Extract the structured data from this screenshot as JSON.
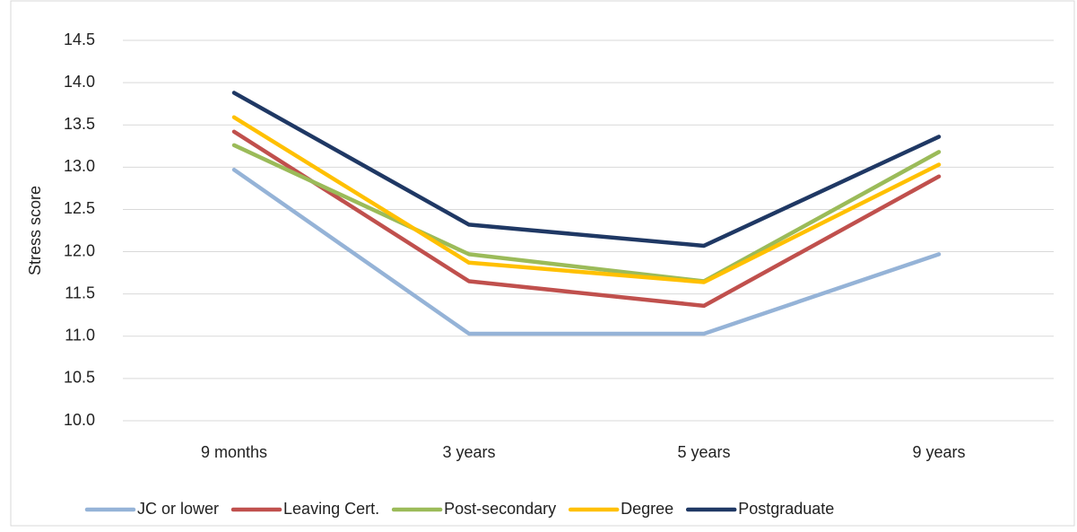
{
  "chart_data": {
    "type": "line",
    "y_label": "Stress score",
    "categories": [
      "9 months",
      "3 years",
      "5 years",
      "9 years"
    ],
    "series": [
      {
        "name": "JC or lower",
        "color": "#95b3d7",
        "values": [
          12.97,
          11.03,
          11.03,
          11.97
        ]
      },
      {
        "name": "Leaving Cert.",
        "color": "#c0504d",
        "values": [
          13.42,
          11.65,
          11.36,
          12.89
        ]
      },
      {
        "name": "Post-secondary",
        "color": "#9bbb59",
        "values": [
          13.26,
          11.97,
          11.65,
          13.18
        ]
      },
      {
        "name": "Degree",
        "color": "#ffc000",
        "values": [
          13.59,
          11.87,
          11.64,
          13.03
        ]
      },
      {
        "name": "Postgraduate",
        "color": "#1f3864",
        "values": [
          13.88,
          12.32,
          12.07,
          13.36
        ]
      }
    ],
    "ylim": [
      10,
      14.5
    ],
    "yticks": [
      {
        "value": 10,
        "label": "10.0"
      },
      10.5,
      {
        "value": 11,
        "label": "11.0"
      },
      11.5,
      {
        "value": 12,
        "label": "12.0"
      },
      12.5,
      {
        "value": 13,
        "label": "13.0"
      },
      13.5,
      {
        "value": 14,
        "label": "14.0"
      },
      14.5
    ],
    "grid": true,
    "legend": "bottom"
  }
}
